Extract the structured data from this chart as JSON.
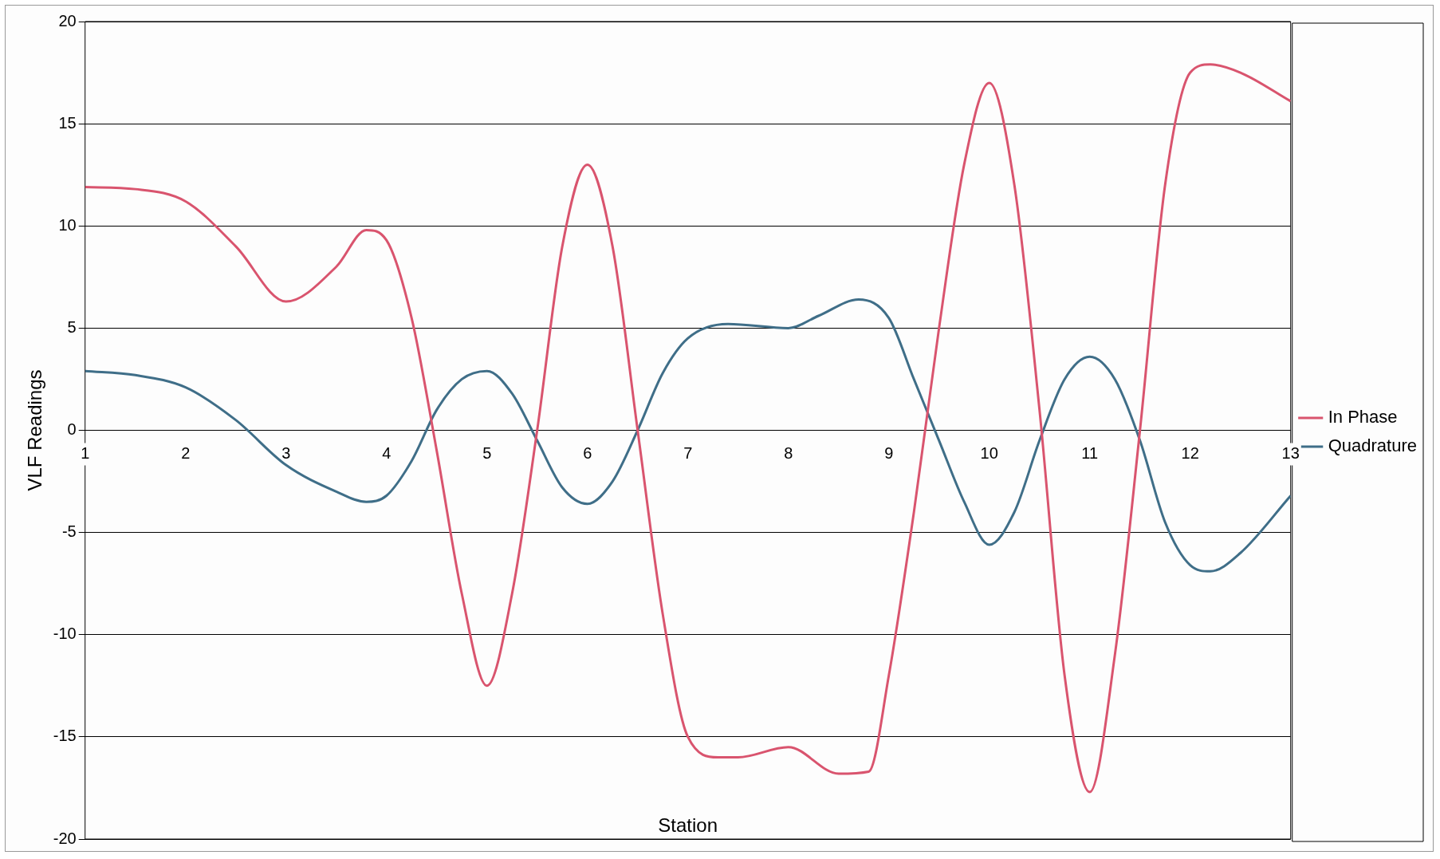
{
  "chart_data": {
    "type": "line",
    "xlabel": "Station",
    "ylabel": "VLF Readings",
    "xlim": [
      1,
      13
    ],
    "xticks": [
      1,
      2,
      3,
      4,
      5,
      6,
      7,
      8,
      9,
      10,
      11,
      12,
      13
    ],
    "ylim": [
      -20,
      20
    ],
    "yticks": [
      -20,
      -15,
      -10,
      -5,
      0,
      5,
      10,
      15,
      20
    ],
    "grid": "y",
    "legend": "right",
    "marker": "none",
    "line_style": "solid",
    "series": [
      {
        "name": "In Phase",
        "color": "#d9546e",
        "x": [
          1,
          1.5,
          2,
          2.5,
          3,
          3.5,
          3.8,
          4,
          4.25,
          4.5,
          4.75,
          5,
          5.25,
          5.5,
          5.75,
          6,
          6.25,
          6.5,
          6.75,
          7,
          7.3,
          7.5,
          8,
          8.5,
          8.8,
          9,
          9.25,
          9.5,
          9.75,
          10,
          10.25,
          10.5,
          10.75,
          11,
          11.25,
          11.5,
          11.75,
          12,
          12.2,
          12.5,
          13
        ],
        "values": [
          11.9,
          11.8,
          11.2,
          9,
          6.3,
          8,
          9.8,
          9.3,
          5.5,
          -1,
          -8,
          -12.5,
          -8,
          0,
          9,
          13,
          9,
          0,
          -9,
          -15,
          -16,
          -16,
          -15.5,
          -16.8,
          -16.7,
          -12,
          -4,
          5,
          13,
          17,
          12,
          1,
          -12,
          -17.7,
          -11,
          0,
          12,
          17.5,
          17.9,
          17.5,
          16.1
        ]
      },
      {
        "name": "Quadrature",
        "color": "#3f6e88",
        "x": [
          1,
          1.5,
          2,
          2.5,
          3,
          3.5,
          3.8,
          4,
          4.25,
          4.5,
          4.75,
          5,
          5.25,
          5.5,
          5.75,
          6,
          6.25,
          6.5,
          6.75,
          7,
          7.4,
          8,
          8.3,
          8.7,
          9,
          9.25,
          9.5,
          9.75,
          10,
          10.25,
          10.5,
          10.75,
          11,
          11.25,
          11.5,
          11.75,
          12,
          12.2,
          12.5,
          13
        ],
        "values": [
          2.9,
          2.7,
          2.1,
          0.5,
          -1.7,
          -3,
          -3.5,
          -3.2,
          -1.5,
          1,
          2.5,
          2.9,
          1.8,
          -0.5,
          -2.8,
          -3.6,
          -2.5,
          0,
          2.8,
          4.5,
          5.2,
          5,
          5.6,
          6.4,
          5.5,
          2.5,
          -0.5,
          -3.5,
          -5.6,
          -4,
          -0.5,
          2.5,
          3.6,
          2.5,
          -0.5,
          -4.5,
          -6.6,
          -6.9,
          -6,
          -3.2
        ]
      }
    ]
  }
}
